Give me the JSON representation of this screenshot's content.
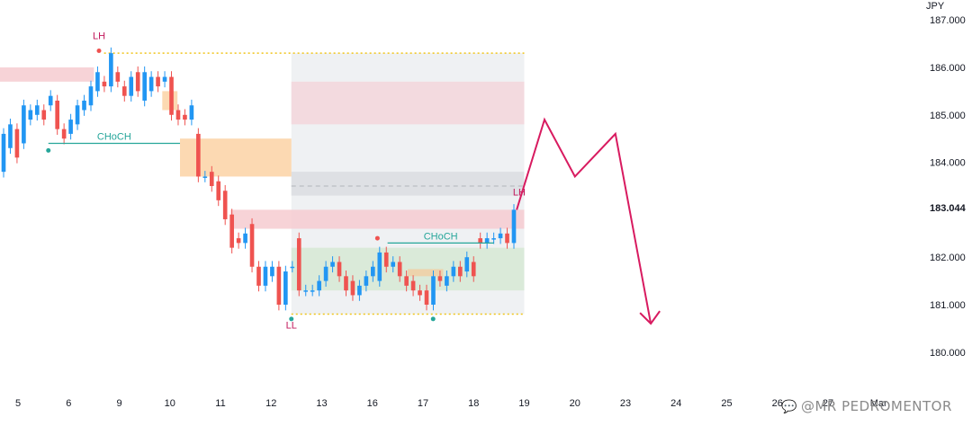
{
  "currency_label": "JPY",
  "watermark": {
    "icon": "chat-icon",
    "text": "@MR PEDROMENTOR"
  },
  "chart_data": {
    "type": "candlestick",
    "y_ticks": [
      187,
      186,
      185,
      184,
      183.044,
      182,
      181,
      180
    ],
    "y_tick_labels": [
      "187.000",
      "186.000",
      "185.000",
      "184.000",
      "183.044",
      "182.000",
      "181.000",
      "180.000"
    ],
    "current_price": 183.044,
    "ylim": [
      179.6,
      187.4
    ],
    "x_labels": [
      "5",
      "6",
      "9",
      "10",
      "11",
      "12",
      "13",
      "16",
      "17",
      "18",
      "19",
      "20",
      "23",
      "24",
      "25",
      "26",
      "27",
      "Mar"
    ],
    "x_label_days": [
      0,
      1,
      2,
      3,
      4,
      5,
      6,
      7,
      8,
      9,
      10,
      11,
      12,
      13,
      14,
      15,
      16,
      17
    ],
    "candles": [
      [
        183.8,
        184.6
      ],
      [
        184.3,
        184.8
      ],
      [
        184.7,
        184.1
      ],
      [
        184.4,
        185.2
      ],
      [
        184.9,
        185.1
      ],
      [
        185.0,
        185.2
      ],
      [
        185.1,
        184.9
      ],
      [
        185.2,
        185.4
      ],
      [
        185.3,
        184.7
      ],
      [
        184.7,
        184.5
      ],
      [
        184.6,
        184.9
      ],
      [
        184.8,
        185.2
      ],
      [
        185.1,
        185.3
      ],
      [
        185.2,
        185.6
      ],
      [
        185.5,
        185.9
      ],
      [
        185.7,
        185.6
      ],
      [
        185.6,
        186.3
      ],
      [
        185.9,
        185.7
      ],
      [
        185.6,
        185.4
      ],
      [
        185.4,
        185.8
      ],
      [
        185.9,
        185.5
      ],
      [
        185.3,
        185.9
      ],
      [
        185.5,
        185.8
      ],
      [
        185.8,
        185.6
      ],
      [
        185.7,
        185.8
      ],
      [
        185.8,
        185.0
      ],
      [
        185.1,
        184.9
      ],
      [
        185.0,
        184.9
      ],
      [
        184.9,
        185.2
      ],
      [
        184.6,
        183.7
      ],
      [
        183.7,
        183.7
      ],
      [
        183.8,
        183.5
      ],
      [
        183.6,
        183.2
      ],
      [
        183.4,
        182.8
      ],
      [
        182.9,
        182.2
      ],
      [
        182.4,
        182.3
      ],
      [
        182.3,
        182.5
      ],
      [
        182.7,
        181.8
      ],
      [
        181.8,
        181.4
      ],
      [
        181.4,
        181.8
      ],
      [
        181.6,
        181.8
      ],
      [
        181.8,
        181.0
      ],
      [
        181.0,
        181.7
      ],
      [
        181.8,
        181.8
      ],
      [
        182.4,
        181.3
      ],
      [
        181.3,
        181.3
      ],
      [
        181.3,
        181.3
      ],
      [
        181.3,
        181.5
      ],
      [
        181.5,
        181.8
      ],
      [
        181.8,
        181.9
      ],
      [
        181.9,
        181.6
      ],
      [
        181.6,
        181.3
      ],
      [
        181.5,
        181.2
      ],
      [
        181.2,
        181.4
      ],
      [
        181.4,
        181.6
      ],
      [
        181.6,
        181.8
      ],
      [
        181.5,
        182.1
      ],
      [
        182.1,
        181.8
      ],
      [
        181.8,
        181.9
      ],
      [
        181.9,
        181.6
      ],
      [
        181.6,
        181.4
      ],
      [
        181.5,
        181.3
      ],
      [
        181.3,
        181.2
      ],
      [
        181.3,
        181.0
      ],
      [
        181.0,
        181.6
      ],
      [
        181.6,
        181.5
      ],
      [
        181.4,
        181.6
      ],
      [
        181.6,
        181.8
      ],
      [
        181.8,
        181.6
      ],
      [
        181.7,
        182.0
      ],
      [
        181.9,
        181.6
      ],
      [
        182.4,
        182.3
      ],
      [
        182.3,
        182.4
      ],
      [
        182.4,
        182.4
      ],
      [
        182.4,
        182.5
      ],
      [
        182.5,
        182.3
      ],
      [
        182.3,
        183.0
      ]
    ],
    "zones": [
      {
        "kind": "supply",
        "color": "#f6cbd0",
        "days": [
          -0.4,
          1.5
        ],
        "prices": [
          185.7,
          186.0
        ]
      },
      {
        "kind": "orderblock",
        "color": "#fcd2a5",
        "days": [
          2.85,
          3.15
        ],
        "prices": [
          185.1,
          185.5
        ]
      },
      {
        "kind": "orderblock",
        "color": "#fcd2a5",
        "days": [
          3.2,
          5.4
        ],
        "prices": [
          183.7,
          184.5
        ]
      },
      {
        "kind": "supply",
        "color": "#f6cbd0",
        "days": [
          4.2,
          10.0
        ],
        "prices": [
          182.6,
          183.0
        ]
      },
      {
        "kind": "range",
        "color": "#e9ecef",
        "days": [
          5.4,
          10.0
        ],
        "prices": [
          180.8,
          186.3
        ]
      },
      {
        "kind": "supply",
        "color": "#f3d6da",
        "days": [
          5.4,
          10.0
        ],
        "prices": [
          184.8,
          185.7
        ]
      },
      {
        "kind": "equilibrium",
        "color": "#dadde1",
        "days": [
          5.4,
          10.0
        ],
        "prices": [
          183.3,
          183.8
        ]
      },
      {
        "kind": "demand",
        "color": "#d6e9d3",
        "days": [
          5.4,
          10.0
        ],
        "prices": [
          181.3,
          182.2
        ]
      },
      {
        "kind": "orderblock",
        "color": "#f0cfa3",
        "days": [
          7.7,
          8.4
        ],
        "prices": [
          181.6,
          181.75
        ]
      }
    ],
    "range_high": 186.3,
    "range_low": 180.8,
    "mid_line": 183.5,
    "labels": [
      {
        "text": "LH",
        "day": 1.6,
        "price": 186.6,
        "color": "#c2185b"
      },
      {
        "text": "LL",
        "day": 5.4,
        "price": 180.5,
        "color": "#c2185b"
      },
      {
        "text": "LH",
        "day": 9.9,
        "price": 183.3,
        "color": "#c2185b"
      }
    ],
    "choch": [
      {
        "text": "CHoCH",
        "days": [
          0.6,
          3.2
        ],
        "price": 184.4
      },
      {
        "text": "CHoCH",
        "days": [
          7.3,
          9.4
        ],
        "price": 182.3
      }
    ],
    "swing_dots": [
      {
        "day": 0.6,
        "price": 184.25,
        "color": "#26a69a"
      },
      {
        "day": 1.6,
        "price": 186.35,
        "color": "#ef5350"
      },
      {
        "day": 5.4,
        "price": 180.7,
        "color": "#26a69a"
      },
      {
        "day": 7.1,
        "price": 182.4,
        "color": "#ef5350"
      },
      {
        "day": 8.2,
        "price": 180.7,
        "color": "#26a69a"
      }
    ],
    "projection": [
      [
        9.85,
        183.0
      ],
      [
        10.4,
        184.9
      ],
      [
        11.0,
        183.7
      ],
      [
        11.8,
        184.6
      ],
      [
        12.5,
        180.6
      ]
    ],
    "colors": {
      "up": "#2196f3",
      "down": "#ef5350",
      "projection": "#d81b60",
      "choch": "#26a69a",
      "current": "#000000"
    }
  }
}
